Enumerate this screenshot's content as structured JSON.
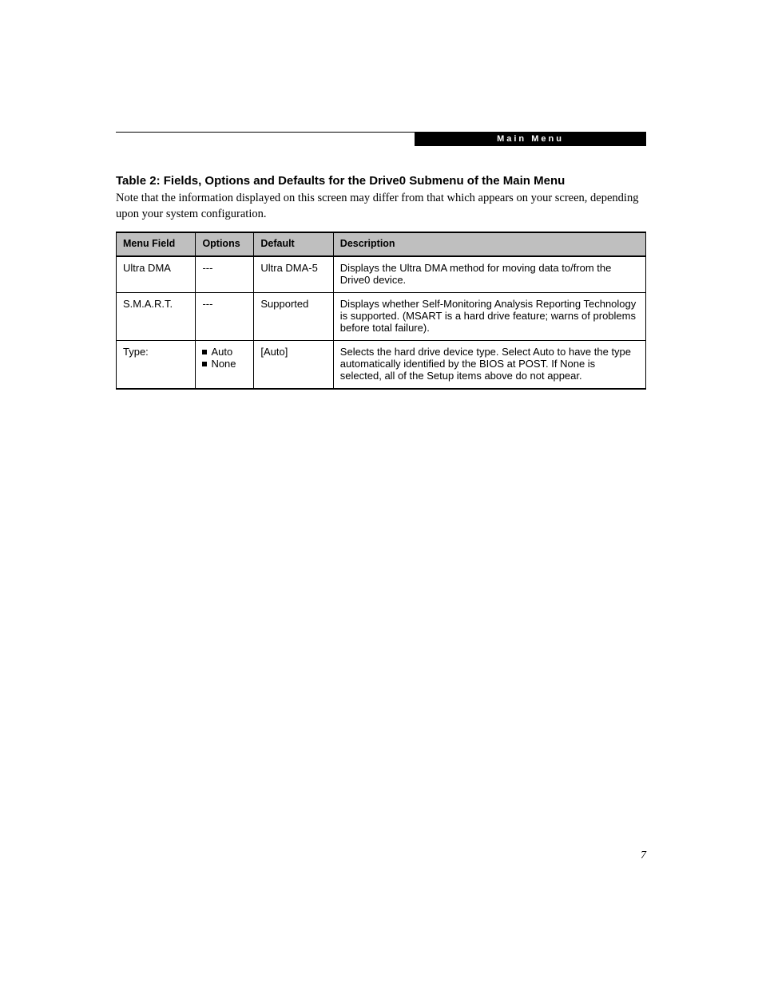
{
  "header": {
    "banner_label": "Main Menu"
  },
  "title": "Table 2: Fields, Options and Defaults for the Drive0 Submenu of the Main Menu",
  "note": "Note that the information displayed on this screen may differ from that which appears on your screen, depending upon your system configuration.",
  "table": {
    "columns": [
      "Menu Field",
      "Options",
      "Default",
      "Description"
    ],
    "column_widths_pct": [
      15,
      11,
      15,
      59
    ],
    "header_bg": "#bfbfbf",
    "border_color": "#000000",
    "font_family": "sans-serif",
    "font_size_pt": 10,
    "rows": [
      {
        "menu_field": "Ultra DMA",
        "options_raw": "---",
        "options": [],
        "default": "Ultra DMA-5",
        "description": "Displays the Ultra DMA method for moving data to/from the Drive0 device."
      },
      {
        "menu_field": "S.M.A.R.T.",
        "options_raw": "---",
        "options": [],
        "default": "Supported",
        "description": "Displays whether Self-Monitoring Analysis Reporting Technology is supported. (MSART is a hard drive feature; warns of problems before total failure)."
      },
      {
        "menu_field": "Type:",
        "options_raw": "",
        "options": [
          "Auto",
          "None"
        ],
        "default": "[Auto]",
        "description": "Selects the hard drive device type. Select Auto to have the type automatically identified by the BIOS at POST. If None is selected, all of the Setup items above do not appear."
      }
    ]
  },
  "page_number": "7",
  "colors": {
    "background": "#ffffff",
    "text": "#000000",
    "banner_bg": "#000000",
    "banner_text": "#ffffff"
  }
}
